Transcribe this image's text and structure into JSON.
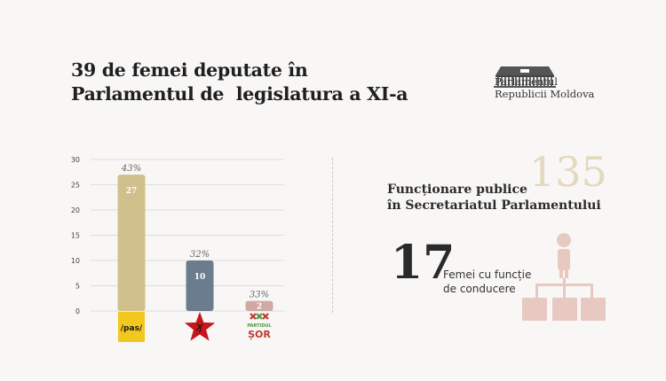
{
  "title": {
    "line1": "39 de femei deputate în",
    "line2": "Parlamentul de  legislatura a XI-a"
  },
  "logo": {
    "line1": "Parlamentul",
    "line2": "Republicii Moldova"
  },
  "chart_data": {
    "type": "bar",
    "categories": [
      "/pas/",
      "PCRM",
      "PARTIDUL ȘOR"
    ],
    "values": [
      27,
      10,
      2
    ],
    "percent_labels": [
      "43%",
      "32%",
      "33%"
    ],
    "value_labels": [
      "27",
      "10",
      "2"
    ],
    "bar_colors": [
      "#d0c08c",
      "#6b7c8f",
      "#d0a9a3"
    ],
    "ylim": [
      0,
      30
    ],
    "yticks": [
      0,
      5,
      10,
      15,
      20,
      25,
      30
    ],
    "grid": true,
    "title": "",
    "xlabel": "",
    "ylabel": ""
  },
  "party_labels": {
    "pas": "/pas/",
    "sor_line1": "PARTIDUL",
    "sor_line2": "ȘOR"
  },
  "stats": {
    "staff_count": "135",
    "staff_line1": "Funcționare publice",
    "staff_line2": "în Secretariatul Parlamentului",
    "leaders_count": "17",
    "leaders_line1": "Femei cu funcție",
    "leaders_line2": "de conducere"
  },
  "colors": {
    "pas_yellow": "#f2c81e",
    "pcrm_red": "#c8151b",
    "sor_red": "#c0392b",
    "sor_green": "#4c9a3c",
    "org_chart": "#e8c9c2",
    "beige_number": "#e4d8bf"
  }
}
